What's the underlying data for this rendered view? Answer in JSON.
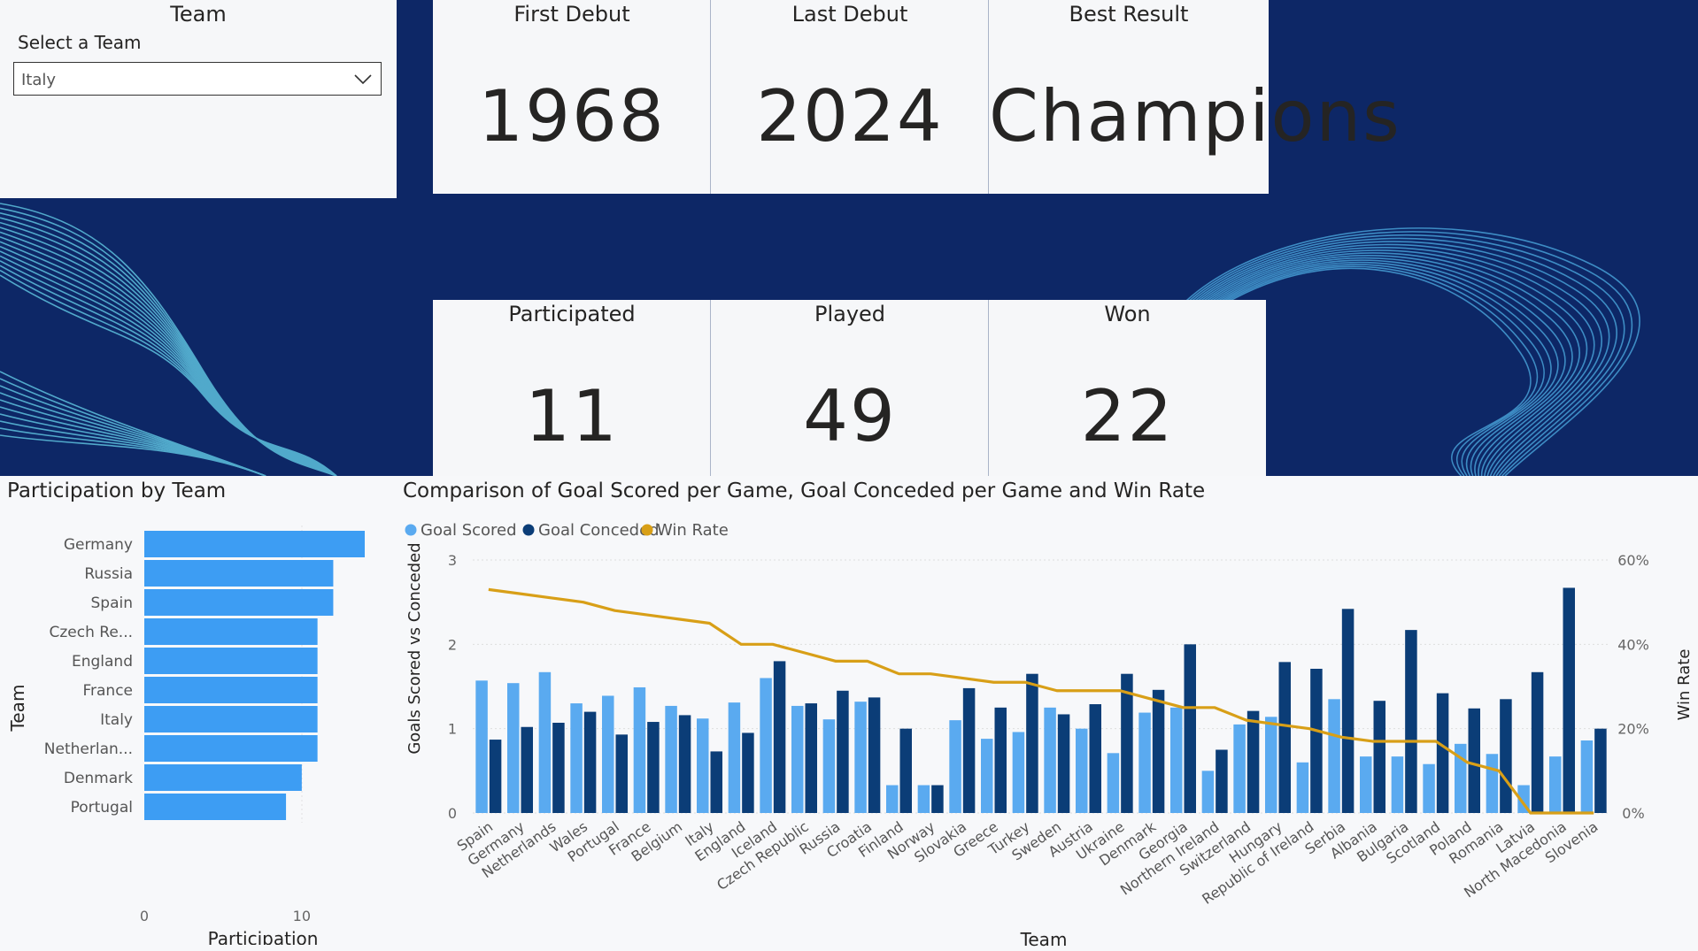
{
  "slicer": {
    "title": "Team",
    "label": "Select a Team",
    "selected": "Italy"
  },
  "cards": {
    "first_debut": {
      "title": "First Debut",
      "value": "1968"
    },
    "last_debut": {
      "title": "Last Debut",
      "value": "2024"
    },
    "best_result": {
      "title": "Best Result",
      "value": "Champions"
    },
    "participated": {
      "title": "Participated",
      "value": "11"
    },
    "played": {
      "title": "Played",
      "value": "49"
    },
    "won": {
      "title": "Won",
      "value": "22"
    }
  },
  "colors": {
    "navy": "#0d2766",
    "bar_light": "#5aaaf0",
    "bar_dark": "#0b3d77",
    "participation_bar": "#3d9df3",
    "win_rate": "#d89f17"
  },
  "participation": {
    "title": "Participation by Team",
    "xlabel": "Participation",
    "ylabel": "Team",
    "x_ticks": [
      "0",
      "10"
    ]
  },
  "comparison": {
    "title": "Comparison of Goal Scored per Game, Goal Conceded per Game and Win Rate",
    "ylabel_left": "Goals Scored vs Conceded",
    "ylabel_right": "Win Rate",
    "xlabel": "Team",
    "legend": [
      "Goal Scored",
      "Goal Conceded",
      "Win Rate"
    ],
    "left_ticks": [
      "0",
      "1",
      "2",
      "3"
    ],
    "right_ticks": [
      "0%",
      "20%",
      "40%",
      "60%"
    ]
  },
  "chart_data": [
    {
      "type": "bar",
      "orientation": "horizontal",
      "title": "Participation by Team",
      "xlabel": "Participation",
      "ylabel": "Team",
      "categories": [
        "Germany",
        "Russia",
        "Spain",
        "Czech Re...",
        "England",
        "France",
        "Italy",
        "Netherlan...",
        "Denmark",
        "Portugal"
      ],
      "values": [
        14,
        12,
        12,
        11,
        11,
        11,
        11,
        11,
        10,
        9
      ],
      "xlim": [
        0,
        14
      ]
    },
    {
      "type": "bar",
      "title": "Comparison of Goal Scored per Game, Goal Conceded per Game and Win Rate",
      "xlabel": "Team",
      "ylabel": "Goals Scored vs Conceded",
      "y2label": "Win Rate",
      "ylim": [
        0,
        3
      ],
      "y2lim": [
        0,
        0.6
      ],
      "legend_position": "top-left",
      "categories": [
        "Spain",
        "Germany",
        "Netherlands",
        "Wales",
        "Portugal",
        "France",
        "Belgium",
        "Italy",
        "England",
        "Iceland",
        "Czech Republic",
        "Russia",
        "Croatia",
        "Finland",
        "Norway",
        "Slovakia",
        "Greece",
        "Turkey",
        "Sweden",
        "Austria",
        "Ukraine",
        "Denmark",
        "Georgia",
        "Northern Ireland",
        "Switzerland",
        "Hungary",
        "Republic of Ireland",
        "Serbia",
        "Albania",
        "Bulgaria",
        "Scotland",
        "Poland",
        "Romania",
        "Latvia",
        "North Macedonia",
        "Slovenia"
      ],
      "series": [
        {
          "name": "Goal Scored",
          "type": "bar",
          "values": [
            1.57,
            1.54,
            1.67,
            1.3,
            1.39,
            1.49,
            1.27,
            1.12,
            1.31,
            1.6,
            1.27,
            1.11,
            1.32,
            0.33,
            0.33,
            1.1,
            0.88,
            0.96,
            1.25,
            1.0,
            0.71,
            1.19,
            1.25,
            0.5,
            1.05,
            1.14,
            0.6,
            1.35,
            0.67,
            0.67,
            0.58,
            0.82,
            0.7,
            0.33,
            0.67,
            0.86
          ]
        },
        {
          "name": "Goal Conceded",
          "type": "bar",
          "values": [
            0.87,
            1.02,
            1.07,
            1.2,
            0.93,
            1.08,
            1.16,
            0.73,
            0.95,
            1.8,
            1.3,
            1.45,
            1.37,
            1.0,
            0.33,
            1.48,
            1.25,
            1.65,
            1.17,
            1.29,
            1.65,
            1.46,
            2.0,
            0.75,
            1.21,
            1.79,
            1.71,
            2.42,
            1.33,
            2.17,
            1.42,
            1.24,
            1.35,
            1.67,
            2.67,
            1.0
          ]
        },
        {
          "name": "Win Rate",
          "type": "line",
          "values": [
            0.53,
            0.52,
            0.51,
            0.5,
            0.48,
            0.47,
            0.46,
            0.45,
            0.4,
            0.4,
            0.38,
            0.36,
            0.36,
            0.33,
            0.33,
            0.32,
            0.31,
            0.31,
            0.29,
            0.29,
            0.29,
            0.27,
            0.25,
            0.25,
            0.22,
            0.21,
            0.2,
            0.18,
            0.17,
            0.17,
            0.17,
            0.12,
            0.1,
            0.0,
            0.0,
            0.0
          ]
        }
      ]
    }
  ]
}
